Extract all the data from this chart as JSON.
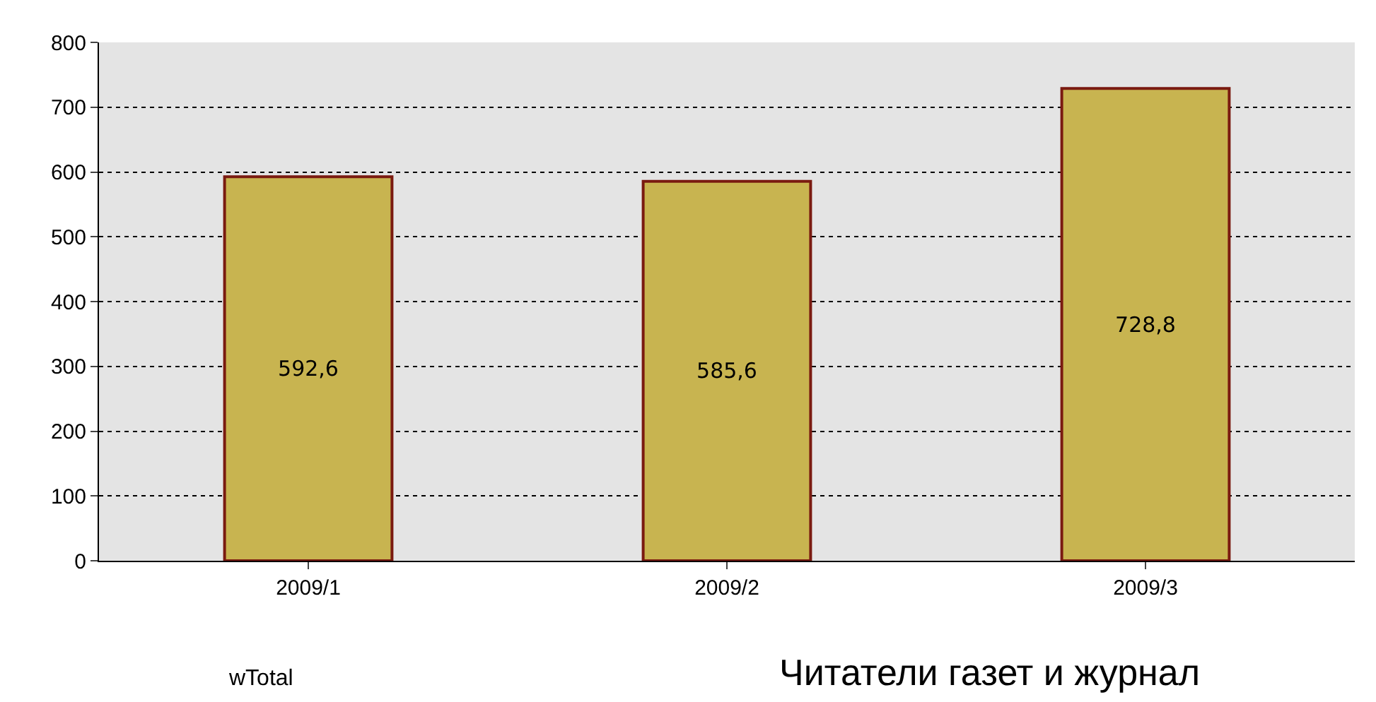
{
  "chart_data": {
    "type": "bar",
    "categories": [
      "2009/1",
      "2009/2",
      "2009/3"
    ],
    "values": [
      592.6,
      585.6,
      728.8
    ],
    "color": "#c8b450",
    "value_labels": [
      "592,6",
      "585,6",
      "728,8"
    ],
    "ylim": [
      0,
      800
    ],
    "yticks": [
      0,
      100,
      200,
      300,
      400,
      500,
      600,
      700,
      800
    ],
    "grid": "y",
    "annotations": [
      "wTotal",
      "Читатели газет и журнал"
    ]
  }
}
